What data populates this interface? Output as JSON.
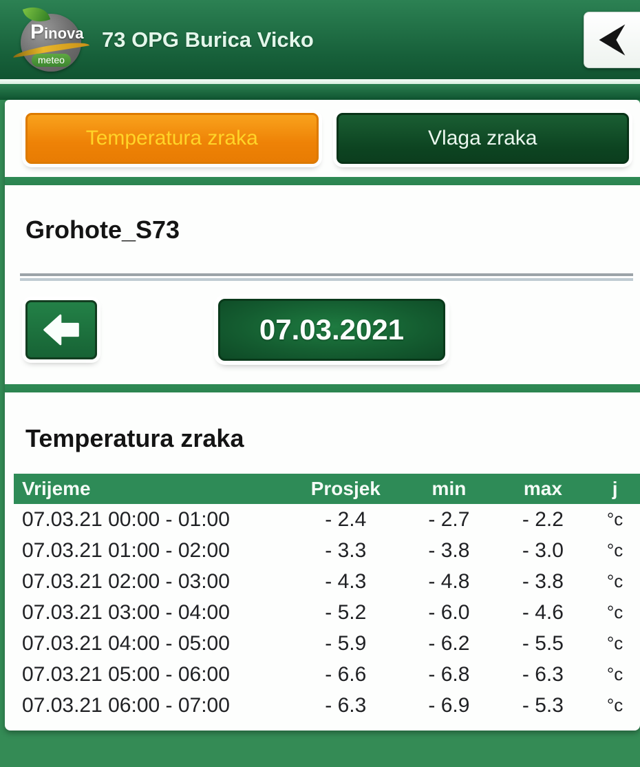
{
  "header": {
    "title": "73 OPG Burica Vicko",
    "logo_brand": "Pinova",
    "logo_sub": "meteo"
  },
  "tabs": [
    {
      "label": "Temperatura zraka",
      "active": true
    },
    {
      "label": "Vlaga zraka",
      "active": false
    }
  ],
  "station": {
    "name": "Grohote_S73"
  },
  "date_nav": {
    "date": "07.03.2021"
  },
  "section": {
    "title": "Temperatura zraka"
  },
  "table": {
    "headers": [
      "Vrijeme",
      "Prosjek",
      "min",
      "max",
      "j"
    ],
    "rows": [
      [
        "07.03.21 00:00 - 01:00",
        "- 2.4",
        "- 2.7",
        "- 2.2",
        "°c"
      ],
      [
        "07.03.21 01:00 - 02:00",
        "- 3.3",
        "- 3.8",
        "- 3.0",
        "°c"
      ],
      [
        "07.03.21 02:00 - 03:00",
        "- 4.3",
        "- 4.8",
        "- 3.8",
        "°c"
      ],
      [
        "07.03.21 03:00 - 04:00",
        "- 5.2",
        "- 6.0",
        "- 4.6",
        "°c"
      ],
      [
        "07.03.21 04:00 - 05:00",
        "- 5.9",
        "- 6.2",
        "- 5.5",
        "°c"
      ],
      [
        "07.03.21 05:00 - 06:00",
        "- 6.6",
        "- 6.8",
        "- 6.3",
        "°c"
      ],
      [
        "07.03.21 06:00 - 07:00",
        "- 6.3",
        "- 6.9",
        "- 5.3",
        "°c"
      ]
    ]
  },
  "colors": {
    "header_green": "#17603A",
    "background_green": "#348B55",
    "table_header_green": "#2E8B57",
    "active_tab_orange": "#EE8206",
    "active_tab_text": "#FFD428",
    "button_green_dark": "#0D4421"
  }
}
